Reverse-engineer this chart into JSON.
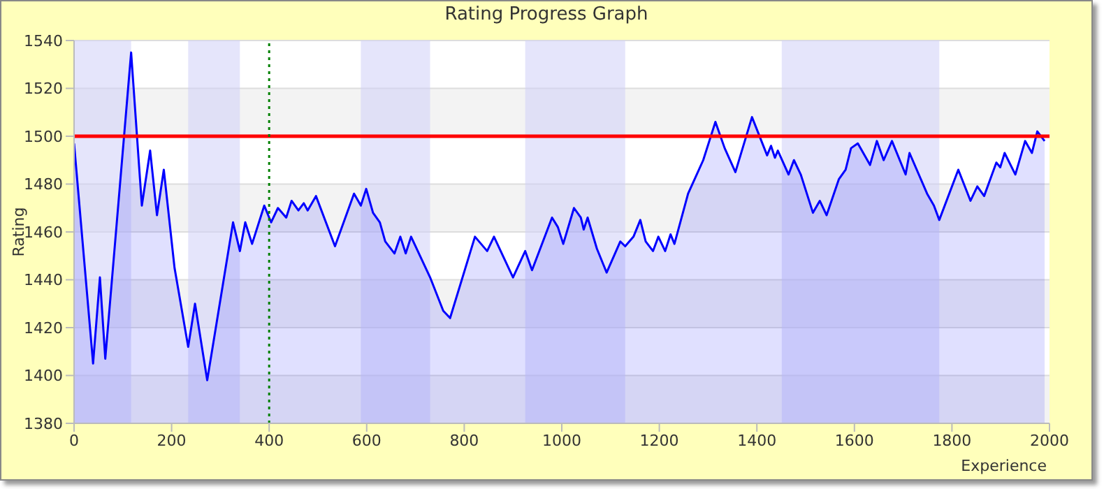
{
  "chart_data": {
    "type": "area",
    "title": "Rating Progress Graph",
    "xlabel": "Experience",
    "ylabel": "Rating",
    "x": [
      0,
      39,
      53,
      64,
      117,
      139,
      156,
      170,
      184,
      206,
      234,
      248,
      273,
      326,
      340,
      351,
      365,
      390,
      404,
      418,
      435,
      446,
      460,
      471,
      479,
      496,
      535,
      574,
      588,
      599,
      613,
      627,
      638,
      657,
      669,
      680,
      691,
      730,
      757,
      771,
      822,
      847,
      861,
      900,
      925,
      939,
      980,
      992,
      1003,
      1025,
      1039,
      1045,
      1053,
      1072,
      1092,
      1120,
      1130,
      1147,
      1161,
      1172,
      1187,
      1198,
      1212,
      1223,
      1231,
      1259,
      1290,
      1315,
      1334,
      1356,
      1390,
      1421,
      1429,
      1437,
      1443,
      1465,
      1476,
      1490,
      1515,
      1529,
      1543,
      1568,
      1582,
      1593,
      1607,
      1632,
      1646,
      1660,
      1677,
      1705,
      1713,
      1749,
      1763,
      1774,
      1813,
      1838,
      1852,
      1866,
      1891,
      1899,
      1908,
      1930,
      1950,
      1964,
      1975,
      1990
    ],
    "series": [
      {
        "color": "#0000ff",
        "values": [
          1497,
          1405,
          1441,
          1407,
          1535,
          1471,
          1494,
          1467,
          1486,
          1445,
          1412,
          1430,
          1398,
          1464,
          1452,
          1464,
          1455,
          1471,
          1464,
          1470,
          1466,
          1473,
          1469,
          1472,
          1469,
          1475,
          1454,
          1476,
          1471,
          1478,
          1468,
          1464,
          1456,
          1451,
          1458,
          1451,
          1458,
          1441,
          1427,
          1424,
          1458,
          1452,
          1458,
          1441,
          1452,
          1444,
          1466,
          1462,
          1455,
          1470,
          1466,
          1461,
          1466,
          1453,
          1443,
          1456,
          1454,
          1458,
          1465,
          1456,
          1452,
          1458,
          1452,
          1459,
          1455,
          1476,
          1490,
          1506,
          1495,
          1485,
          1508,
          1492,
          1496,
          1491,
          1494,
          1484,
          1490,
          1484,
          1468,
          1473,
          1467,
          1482,
          1486,
          1495,
          1497,
          1488,
          1498,
          1490,
          1498,
          1484,
          1493,
          1476,
          1471,
          1465,
          1486,
          1473,
          1479,
          1475,
          1489,
          1487,
          1493,
          1484,
          1498,
          1493,
          1502,
          1498
        ]
      }
    ],
    "xlim": [
      0,
      2000
    ],
    "xticks": [
      0,
      200,
      400,
      600,
      800,
      1000,
      1200,
      1400,
      1600,
      1800,
      2000
    ],
    "ylim": [
      1380,
      1540
    ],
    "yticks": [
      1380,
      1400,
      1420,
      1440,
      1460,
      1480,
      1500,
      1520,
      1540
    ],
    "grid": "y",
    "legend": false,
    "marker": "none",
    "line_style": "solid",
    "ref_lines": [
      {
        "axis": "y",
        "value": 1500,
        "color": "#ff0000",
        "line_style": "solid"
      },
      {
        "axis": "x",
        "value": 400,
        "color": "#008000",
        "line_style": "dotted"
      }
    ],
    "bands": [
      {
        "axis": "x",
        "from": 0,
        "to": 117,
        "color": "#cfcff8"
      },
      {
        "axis": "x",
        "from": 234,
        "to": 340,
        "color": "#cfcff8"
      },
      {
        "axis": "x",
        "from": 588,
        "to": 730,
        "color": "#cfcff8"
      },
      {
        "axis": "x",
        "from": 925,
        "to": 1130,
        "color": "#cfcff8"
      },
      {
        "axis": "x",
        "from": 1451,
        "to": 1774,
        "color": "#cfcff8"
      }
    ]
  }
}
